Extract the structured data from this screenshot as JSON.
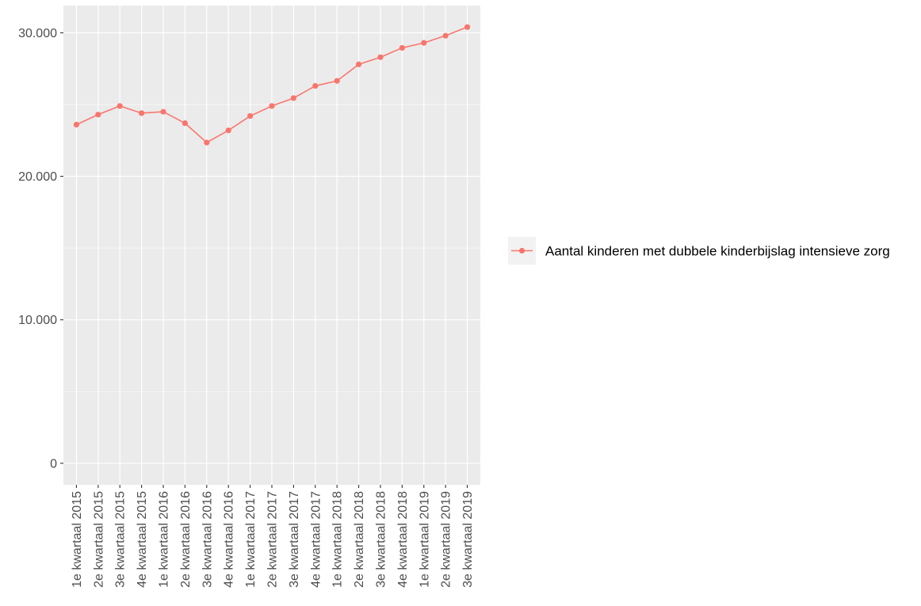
{
  "chart_data": {
    "type": "line",
    "categories": [
      "1e kwartaal 2015",
      "2e kwartaal 2015",
      "3e kwartaal 2015",
      "4e kwartaal 2015",
      "1e kwartaal 2016",
      "2e kwartaal 2016",
      "3e kwartaal 2016",
      "4e kwartaal 2016",
      "1e kwartaal 2017",
      "2e kwartaal 2017",
      "3e kwartaal 2017",
      "4e kwartaal 2017",
      "1e kwartaal 2018",
      "2e kwartaal 2018",
      "3e kwartaal 2018",
      "4e kwartaal 2018",
      "1e kwartaal 2019",
      "2e kwartaal 2019",
      "3e kwartaal 2019"
    ],
    "series": [
      {
        "name": "Aantal kinderen met dubbele kinderbijslag intensieve zorg",
        "color": "#F8766D",
        "values": [
          23600,
          24300,
          24900,
          24400,
          24500,
          23700,
          22350,
          23200,
          24200,
          24900,
          25450,
          26300,
          26650,
          27800,
          28300,
          28950,
          29300,
          29800,
          30400
        ]
      }
    ],
    "title": "",
    "xlabel": "",
    "ylabel": "",
    "ylim": [
      -1500,
      31900
    ],
    "y_ticks": [
      0,
      10000,
      20000,
      30000
    ],
    "y_tick_labels": [
      "0",
      "10.000",
      "20.000",
      "30.000"
    ],
    "grid": true,
    "panel_background": "#EBEBEB",
    "legend_position": "right"
  }
}
